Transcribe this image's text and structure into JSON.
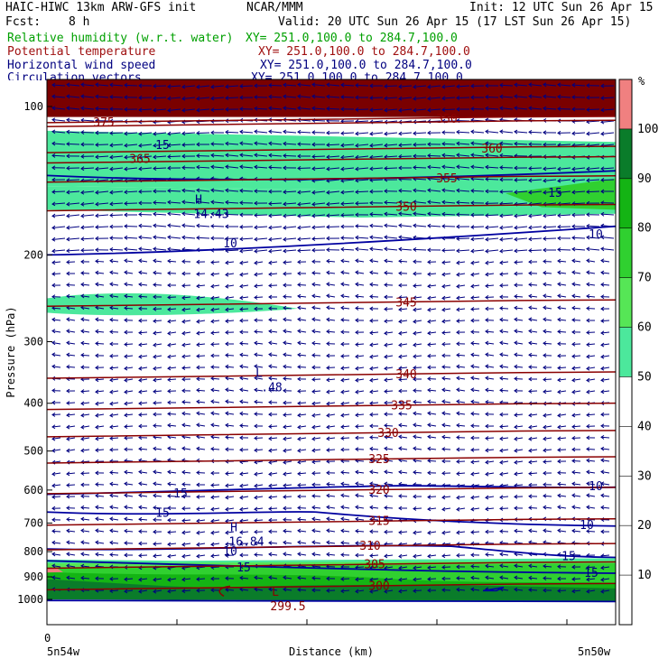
{
  "header": {
    "model": "HAIC-HIWC 13km ARW-GFS init",
    "center": "NCAR/MMM",
    "init": "Init: 12 UTC Sun 26 Apr 15",
    "fcst_label": "Fcst:",
    "fcst_value": "8 h",
    "valid": "Valid: 20 UTC Sun 26 Apr 15 (17 LST Sun 26 Apr 15)",
    "fields": [
      {
        "name": "Relative humidity (w.r.t. water)",
        "xy": "XY= 251.0,100.0 to 284.7,100.0",
        "color": "#00a000"
      },
      {
        "name": "Potential temperature",
        "xy": "XY= 251.0,100.0 to 284.7,100.0",
        "color": "#a01010"
      },
      {
        "name": "Horizontal wind speed",
        "xy": "XY= 251.0,100.0 to 284.7,100.0",
        "color": "#000080"
      },
      {
        "name": "Circulation vectors",
        "xy": "XY= 251.0,100.0 to 284.7,100.0",
        "color": "#000080"
      }
    ]
  },
  "chart_data": {
    "type": "contour-cross-section",
    "xlabel": "Distance (km)",
    "ylabel": "Pressure (hPa)",
    "x_start_label": "5n54w",
    "x_end_label": "5n50w",
    "x_zero_tick": "0",
    "y_axis": {
      "scale": "log",
      "ticks": [
        100,
        200,
        300,
        400,
        500,
        600,
        700,
        800,
        900,
        1000
      ],
      "range": [
        1050,
        70
      ]
    },
    "colorbar": {
      "unit": "%",
      "labels": [
        10,
        20,
        30,
        40,
        50,
        60,
        70,
        80,
        90,
        100
      ],
      "bins": [
        {
          "from": 0,
          "to": 50,
          "color": "#ffffff"
        },
        {
          "from": 50,
          "to": 60,
          "color": "#4ce89c"
        },
        {
          "from": 60,
          "to": 70,
          "color": "#56e656"
        },
        {
          "from": 70,
          "to": 80,
          "color": "#30d030"
        },
        {
          "from": 80,
          "to": 90,
          "color": "#14b414"
        },
        {
          "from": 90,
          "to": 100,
          "color": "#0a7c2a"
        },
        {
          "from": 100,
          "to": 110,
          "color": "#f08080"
        }
      ]
    },
    "theta_contours": [
      {
        "label": "300",
        "p": 940
      },
      {
        "label": "305",
        "p": 850
      },
      {
        "label": "310",
        "p": 780
      },
      {
        "label": "315",
        "p": 695
      },
      {
        "label": "320",
        "p": 600
      },
      {
        "label": "325",
        "p": 520
      },
      {
        "label": "330",
        "p": 460
      },
      {
        "label": "335",
        "p": 405
      },
      {
        "label": "340",
        "p": 350
      },
      {
        "label": "345",
        "p": 250
      },
      {
        "label": "350",
        "p": 160
      },
      {
        "label": "355",
        "p": 140
      },
      {
        "label": "360",
        "p": 122
      },
      {
        "label": "365",
        "p": 128
      },
      {
        "label": "375",
        "p": 108
      },
      {
        "label": "350",
        "p": 106
      }
    ],
    "wind_contour_labels": [
      "15",
      "10",
      "15",
      "10",
      "10",
      "15",
      "15",
      "15",
      "10",
      "10",
      "15",
      "15"
    ],
    "extrema": [
      {
        "kind": "H",
        "value": "14.43",
        "p": 160
      },
      {
        "kind": "L",
        "value": ".48",
        "p": 360
      },
      {
        "kind": "H",
        "value": "16.84",
        "p": 740
      },
      {
        "kind": "L",
        "value": "299.5",
        "p": 1000
      }
    ]
  }
}
